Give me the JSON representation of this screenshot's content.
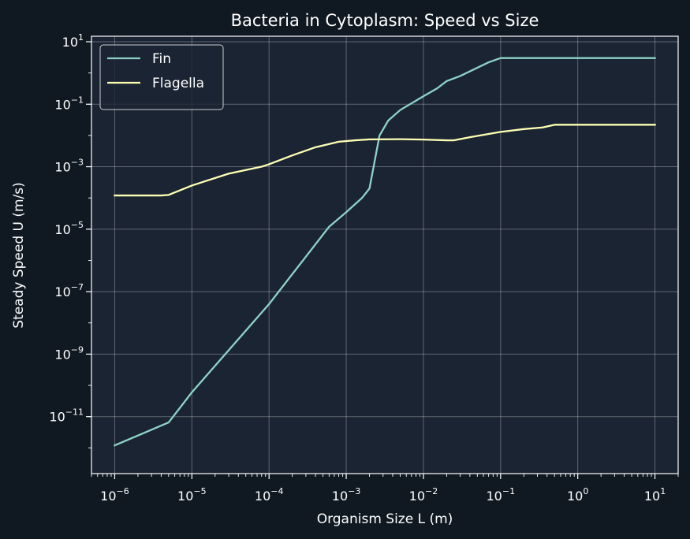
{
  "chart_data": {
    "type": "line",
    "title": "Bacteria in Cytoplasm: Speed vs Size",
    "xlabel": "Organism Size L (m)",
    "ylabel": "Steady Speed U (m/s)",
    "xscale": "log",
    "yscale": "log",
    "xlim": [
      5e-07,
      20
    ],
    "ylim": [
      1.5e-13,
      15
    ],
    "x_ticks": [
      {
        "base": "10",
        "exp": "−6",
        "value": 1e-06
      },
      {
        "base": "10",
        "exp": "−5",
        "value": 1e-05
      },
      {
        "base": "10",
        "exp": "−4",
        "value": 0.0001
      },
      {
        "base": "10",
        "exp": "−3",
        "value": 0.001
      },
      {
        "base": "10",
        "exp": "−2",
        "value": 0.01
      },
      {
        "base": "10",
        "exp": "−1",
        "value": 0.1
      },
      {
        "base": "10",
        "exp": "0",
        "value": 1
      },
      {
        "base": "10",
        "exp": "1",
        "value": 10
      }
    ],
    "y_ticks": [
      {
        "base": "10",
        "exp": "−11",
        "value": 1e-11
      },
      {
        "base": "10",
        "exp": "−9",
        "value": 1e-09
      },
      {
        "base": "10",
        "exp": "−7",
        "value": 1e-07
      },
      {
        "base": "10",
        "exp": "−5",
        "value": 1e-05
      },
      {
        "base": "10",
        "exp": "−3",
        "value": 0.001
      },
      {
        "base": "10",
        "exp": "−1",
        "value": 0.1
      },
      {
        "base": "10",
        "exp": "1",
        "value": 10
      }
    ],
    "grid": true,
    "legend_position": "top-left",
    "series": [
      {
        "name": "Fin",
        "color": "#8dd3c7",
        "points": [
          [
            1e-06,
            1.2e-12
          ],
          [
            5e-06,
            6.5e-12
          ],
          [
            1e-05,
            6e-11
          ],
          [
            0.0001,
            4e-08
          ],
          [
            0.0006,
            1.2e-05
          ],
          [
            0.001,
            3.5e-05
          ],
          [
            0.0016,
            0.0001
          ],
          [
            0.002,
            0.0002
          ],
          [
            0.0027,
            0.01
          ],
          [
            0.0035,
            0.03
          ],
          [
            0.005,
            0.065
          ],
          [
            0.01,
            0.18
          ],
          [
            0.015,
            0.32
          ],
          [
            0.02,
            0.55
          ],
          [
            0.03,
            0.8
          ],
          [
            0.07,
            2.2
          ],
          [
            0.1,
            3
          ],
          [
            1,
            3
          ],
          [
            10,
            3
          ]
        ]
      },
      {
        "name": "Flagella",
        "color": "#ffffb3",
        "points": [
          [
            1e-06,
            0.00012
          ],
          [
            4e-06,
            0.00012
          ],
          [
            5e-06,
            0.000125
          ],
          [
            1e-05,
            0.00025
          ],
          [
            3e-05,
            0.0006
          ],
          [
            8e-05,
            0.001
          ],
          [
            0.0001,
            0.0012
          ],
          [
            0.0002,
            0.0023
          ],
          [
            0.0004,
            0.0042
          ],
          [
            0.0008,
            0.0063
          ],
          [
            0.0013,
            0.007
          ],
          [
            0.002,
            0.0075
          ],
          [
            0.005,
            0.0076
          ],
          [
            0.01,
            0.0074
          ],
          [
            0.02,
            0.007
          ],
          [
            0.025,
            0.007
          ],
          [
            0.04,
            0.0088
          ],
          [
            0.1,
            0.013
          ],
          [
            0.2,
            0.016
          ],
          [
            0.35,
            0.018
          ],
          [
            0.5,
            0.022
          ],
          [
            1,
            0.022
          ],
          [
            10,
            0.022
          ]
        ]
      }
    ]
  }
}
